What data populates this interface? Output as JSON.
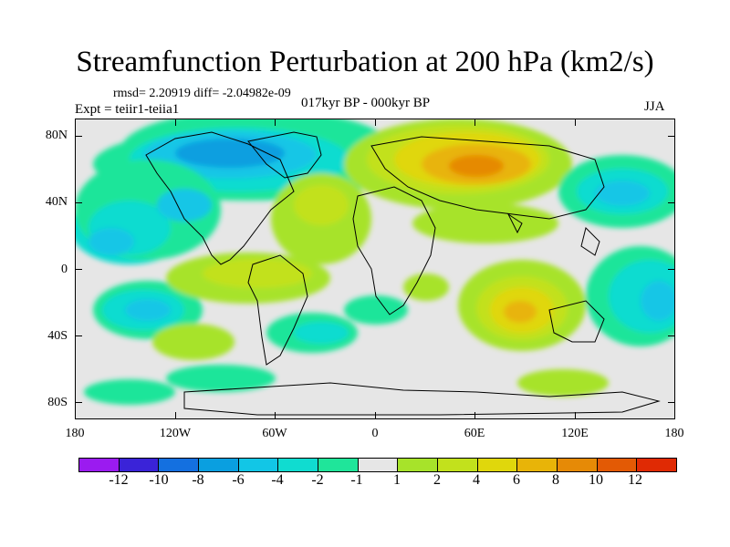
{
  "title": "Streamfunction Perturbation at 200 hPa (km2/s)",
  "stats": "rmsd= 2.20919 diff= -2.04982e-09",
  "experiment": "Expt = teiir1-teiia1",
  "period": "017kyr BP - 000kyr BP",
  "season": "JJA",
  "lat_labels": [
    "80N",
    "40N",
    "0",
    "40S",
    "80S"
  ],
  "lon_labels": [
    "180",
    "120W",
    "60W",
    "0",
    "60E",
    "120E",
    "180"
  ],
  "colorbar": {
    "colors": [
      "#9b1bf0",
      "#3a23d8",
      "#1470e0",
      "#0a9fe0",
      "#12c6e6",
      "#10dcd0",
      "#1fe59a",
      "#e6e6e6",
      "#a7e32a",
      "#c2e11c",
      "#e0d70c",
      "#e8b408",
      "#e68a06",
      "#e35a05",
      "#e02a04"
    ],
    "labels": [
      "-12",
      "-10",
      "-8",
      "-6",
      "-4",
      "-2",
      "-1",
      "1",
      "2",
      "4",
      "6",
      "8",
      "10",
      "12"
    ]
  }
}
